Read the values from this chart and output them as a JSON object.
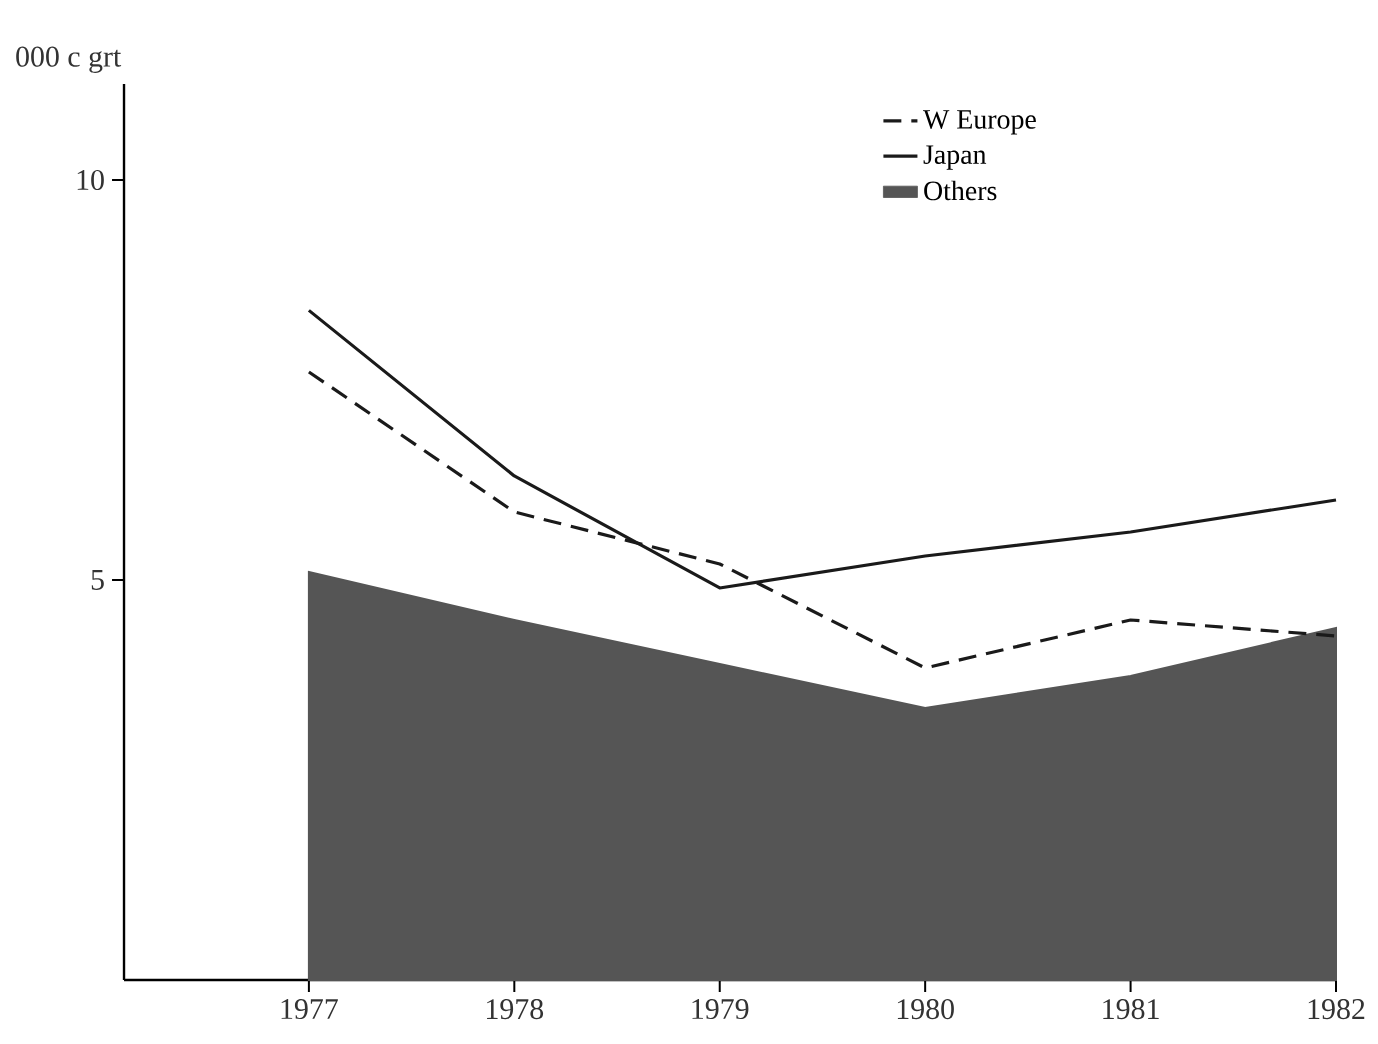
{
  "chart_data": {
    "type": "line",
    "ylabel": "000 c grt",
    "x": [
      1977,
      1978,
      1979,
      1980,
      1981,
      1982
    ],
    "xlim": [
      1976.1,
      1982
    ],
    "xticks": [
      1977,
      1978,
      1979,
      1980,
      1981,
      1982
    ],
    "ylim": [
      0,
      11.2
    ],
    "yticks": [
      5,
      10
    ],
    "legend": "top right",
    "series": [
      {
        "name": "W Europe",
        "line_style": "dashed",
        "color": "#1a1a1a",
        "values": [
          7.6,
          5.85,
          5.2,
          3.9,
          4.5,
          4.3
        ]
      },
      {
        "name": "Japan",
        "line_style": "solid",
        "color": "#1a1a1a",
        "values": [
          8.37,
          6.3,
          4.9,
          5.3,
          5.6,
          6.0
        ]
      },
      {
        "name": "Others",
        "type": "area",
        "color": "#555555",
        "values": [
          5.1,
          4.5,
          3.95,
          3.4,
          3.8,
          4.4
        ]
      }
    ]
  }
}
